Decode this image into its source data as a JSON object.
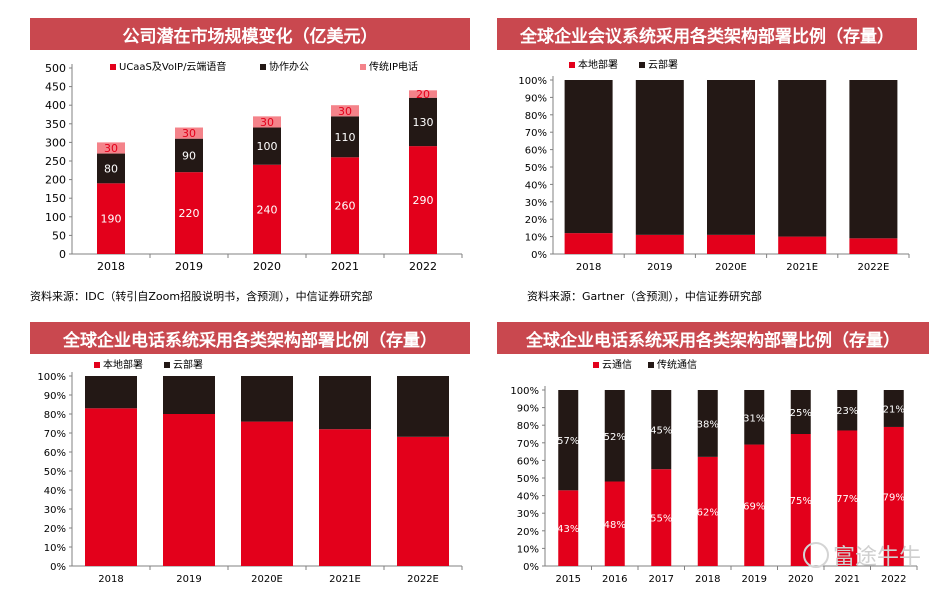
{
  "panels": [
    {
      "title": "公司潜在市场规模变化（亿美元）",
      "source": "资料来源：IDC（转引自Zoom招股说明书，含预测），中信证券研究部",
      "chart_data": {
        "type": "bar",
        "stacked": true,
        "categories": [
          "2018",
          "2019",
          "2020",
          "2021",
          "2022"
        ],
        "series": [
          {
            "name": "UCaaS及VoIP/云端语音",
            "color": "#e3001b",
            "values": [
              190,
              220,
              240,
              260,
              290
            ],
            "labels": [
              "190",
              "220",
              "240",
              "260",
              "290"
            ]
          },
          {
            "name": "协作办公",
            "color": "#231815",
            "values": [
              80,
              90,
              100,
              110,
              130
            ],
            "labels": [
              "80",
              "90",
              "100",
              "110",
              "130"
            ]
          },
          {
            "name": "传统IP电话",
            "color": "#f4838a",
            "values": [
              30,
              30,
              30,
              30,
              20
            ],
            "labels": [
              "30",
              "30",
              "30",
              "30",
              "20"
            ]
          }
        ],
        "ylim": [
          0,
          500
        ],
        "yticks": [
          "0",
          "50",
          "100",
          "150",
          "200",
          "250",
          "300",
          "350",
          "400",
          "450",
          "500"
        ],
        "legend": "top"
      }
    },
    {
      "title": "全球企业会议系统采用各类架构部署比例（存量）",
      "source": "资料来源：Gartner（含预测），中信证券研究部",
      "chart_data": {
        "type": "bar",
        "stacked": true,
        "categories": [
          "2018",
          "2019",
          "2020E",
          "2021E",
          "2022E"
        ],
        "series": [
          {
            "name": "本地部署",
            "color": "#e3001b",
            "values": [
              12,
              11,
              11,
              10,
              9
            ]
          },
          {
            "name": "云部署",
            "color": "#231815",
            "values": [
              88,
              89,
              89,
              90,
              91
            ]
          }
        ],
        "ylim": [
          0,
          100
        ],
        "yticks": [
          "0%",
          "10%",
          "20%",
          "30%",
          "40%",
          "50%",
          "60%",
          "70%",
          "80%",
          "90%",
          "100%"
        ],
        "legend": "top-left"
      }
    },
    {
      "title": "全球企业电话系统采用各类架构部署比例（存量）",
      "source": "",
      "chart_data": {
        "type": "bar",
        "stacked": true,
        "categories": [
          "2018",
          "2019",
          "2020E",
          "2021E",
          "2022E"
        ],
        "series": [
          {
            "name": "本地部署",
            "color": "#e3001b",
            "values": [
              83,
              80,
              76,
              72,
              68
            ]
          },
          {
            "name": "云部署",
            "color": "#231815",
            "values": [
              17,
              20,
              24,
              28,
              32
            ]
          }
        ],
        "ylim": [
          0,
          100
        ],
        "yticks": [
          "0%",
          "10%",
          "20%",
          "30%",
          "40%",
          "50%",
          "60%",
          "70%",
          "80%",
          "90%",
          "100%"
        ],
        "legend": "top-left"
      }
    },
    {
      "title": "全球企业电话系统采用各类架构部署比例（存量）",
      "source": "",
      "chart_data": {
        "type": "bar",
        "stacked": true,
        "categories": [
          "2015",
          "2016",
          "2017",
          "2018",
          "2019",
          "2020",
          "2021",
          "2022"
        ],
        "series": [
          {
            "name": "云通信",
            "color": "#e3001b",
            "values": [
              43,
              48,
              55,
              62,
              69,
              75,
              77,
              79
            ],
            "labels": [
              "43%",
              "48%",
              "55%",
              "62%",
              "69%",
              "75%",
              "77%",
              "79%"
            ]
          },
          {
            "name": "传统通信",
            "color": "#231815",
            "values": [
              57,
              52,
              45,
              38,
              31,
              25,
              23,
              21
            ],
            "labels": [
              "57%",
              "52%",
              "45%",
              "38%",
              "31%",
              "25%",
              "23%",
              "21%"
            ]
          }
        ],
        "ylim": [
          0,
          100
        ],
        "yticks": [
          "0%",
          "10%",
          "20%",
          "30%",
          "40%",
          "50%",
          "60%",
          "70%",
          "80%",
          "90%",
          "100%"
        ],
        "legend": "top-left"
      }
    }
  ],
  "watermark": {
    "text": "富途牛牛",
    "icon": "futu-logo-icon"
  }
}
